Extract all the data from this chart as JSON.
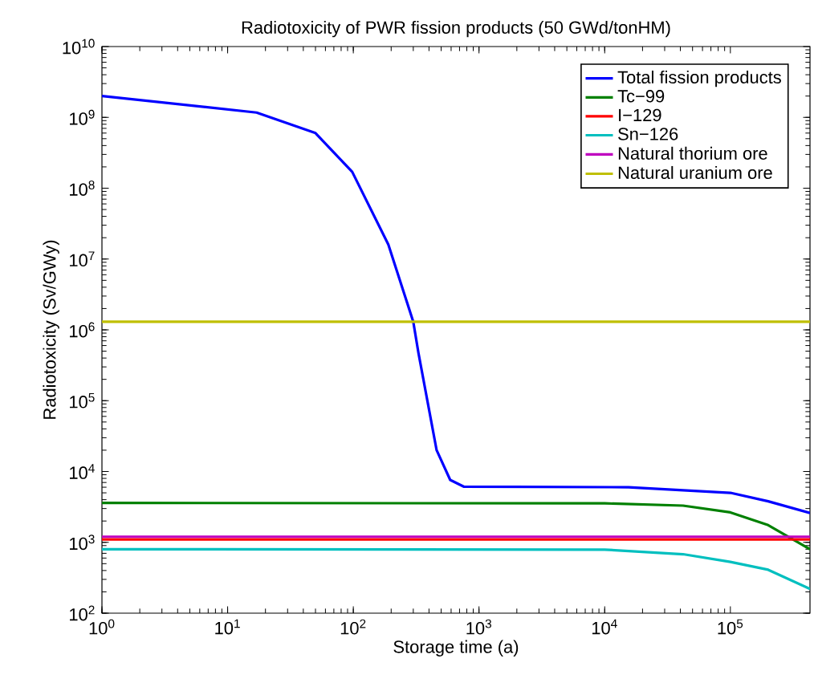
{
  "chart_data": {
    "type": "line",
    "title": "Radiotoxicity of PWR fission products (50 GWd/tonHM)",
    "xlabel": "Storage time (a)",
    "ylabel": "Radiotoxicity (Sv/GWy)",
    "log": "xy",
    "legend": "top right",
    "line_style": "solid",
    "xlim": [
      1,
      430000
    ],
    "ylim": [
      100,
      10000000000
    ],
    "xticks": [
      {
        "value": 1,
        "label": "10$^{0}$"
      },
      {
        "value": 10,
        "label": "10$^{1}$"
      },
      {
        "value": 100,
        "label": "10$^{2}$"
      },
      {
        "value": 1000,
        "label": "10$^{3}$"
      },
      {
        "value": 10000,
        "label": "10$^{4}$"
      },
      {
        "value": 100000,
        "label": "10$^{5}$"
      }
    ],
    "yticks": [
      {
        "value": 100,
        "label": "10$^{2}$"
      },
      {
        "value": 1000,
        "label": "10$^{3}$"
      },
      {
        "value": 10000,
        "label": "10$^{4}$"
      },
      {
        "value": 100000,
        "label": "10$^{5}$"
      },
      {
        "value": 1000000,
        "label": "10$^{6}$"
      },
      {
        "value": 10000000,
        "label": "10$^{7}$"
      },
      {
        "value": 100000000,
        "label": "10$^{8}$"
      },
      {
        "value": 1000000000,
        "label": "10$^{9}$"
      },
      {
        "value": 10000000000,
        "label": "10$^{10}$"
      }
    ],
    "series": [
      {
        "name": "Total fission products",
        "color": "#0000ff",
        "x": [
          1,
          17,
          50,
          98,
          190,
          300,
          330,
          460,
          590,
          760,
          15500,
          100000,
          200000,
          430000
        ],
        "values": [
          2000000000,
          1170000000,
          600000000,
          170000000,
          16000000,
          1300000,
          470000,
          20000,
          7600,
          6100,
          6000,
          5000,
          3800,
          2600
        ]
      },
      {
        "name": "Tc−99",
        "color": "#008000",
        "x": [
          1,
          10000,
          42000,
          100000,
          200000,
          430000
        ],
        "values": [
          3600,
          3550,
          3300,
          2650,
          1750,
          800
        ]
      },
      {
        "name": "I−129",
        "color": "#ff0000",
        "x": [
          1,
          430000
        ],
        "values": [
          1100,
          1100
        ]
      },
      {
        "name": "Sn−126",
        "color": "#00bfbf",
        "x": [
          1,
          10000,
          42000,
          100000,
          200000,
          430000
        ],
        "values": [
          800,
          790,
          680,
          530,
          410,
          220
        ]
      },
      {
        "name": "Natural thorium ore",
        "color": "#bf00bf",
        "x": [
          1,
          430000
        ],
        "values": [
          1200,
          1200
        ]
      },
      {
        "name": "Natural uranium ore",
        "color": "#bfbf00",
        "x": [
          1,
          430000
        ],
        "values": [
          1300000,
          1300000
        ]
      }
    ]
  }
}
